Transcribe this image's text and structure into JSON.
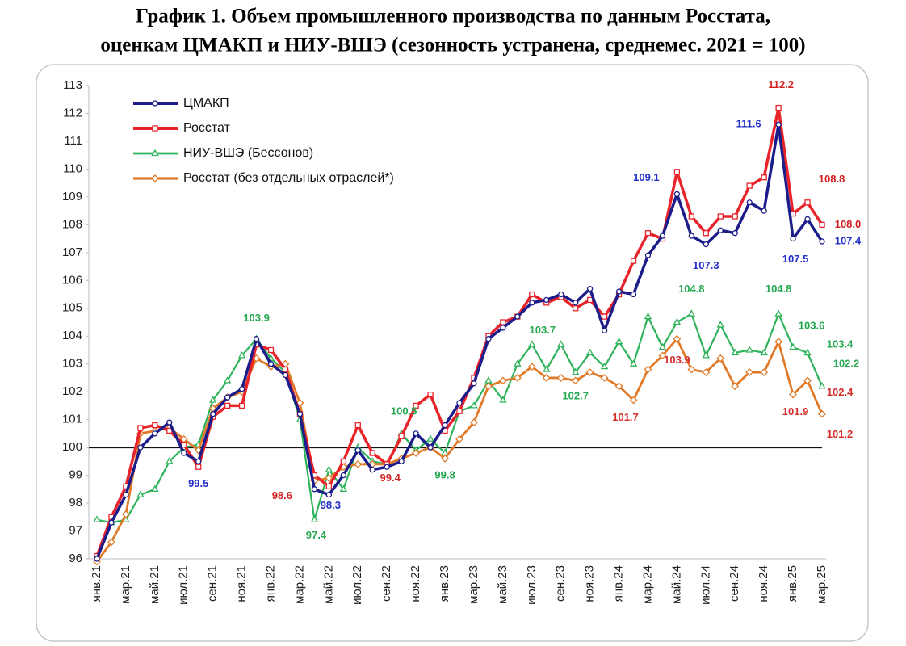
{
  "chart_data": {
    "type": "line",
    "title": [
      "График 1. Объем промышленного производства по данным Росстата,",
      "оценкам ЦМАКП и НИУ-ВШЭ (сезонность устранена, среднемес. 2021 = 100)"
    ],
    "categories": [
      "янв.21",
      null,
      "мар.21",
      null,
      "май.21",
      null,
      "июл.21",
      null,
      "сен.21",
      null,
      "ноя.21",
      null,
      "янв.22",
      null,
      "мар.22",
      null,
      "май.22",
      null,
      "июл.22",
      null,
      "сен.22",
      null,
      "ноя.22",
      null,
      "янв.23",
      null,
      "мар.23",
      null,
      "май.23",
      null,
      "июл.23",
      null,
      "сен.23",
      null,
      "ноя.23",
      null,
      "янв.24",
      null,
      "мар.24",
      null,
      "май.24",
      null,
      "июл.24",
      null,
      "сен.24",
      null,
      "ноя.24",
      null,
      "янв.25",
      null,
      "мар.25"
    ],
    "ylim": [
      96,
      113
    ],
    "yticks": [
      96,
      97,
      98,
      99,
      100,
      101,
      102,
      103,
      104,
      105,
      106,
      107,
      108,
      109,
      110,
      111,
      112,
      113
    ],
    "reference_line": 100,
    "legend": "top-left",
    "series": [
      {
        "name": "ЦМАКП",
        "color": "#1c1c8a",
        "label_color": "#2430c8",
        "marker": "circle",
        "values": [
          96.0,
          97.3,
          98.3,
          100.0,
          100.5,
          100.9,
          99.8,
          99.5,
          101.2,
          101.8,
          102.1,
          103.9,
          103.0,
          102.6,
          101.2,
          98.5,
          98.3,
          99.0,
          99.9,
          99.2,
          99.3,
          99.5,
          100.5,
          100.0,
          100.8,
          101.6,
          102.3,
          103.9,
          104.3,
          104.7,
          105.2,
          105.3,
          105.5,
          105.2,
          105.7,
          104.2,
          105.6,
          105.5,
          106.9,
          107.6,
          109.1,
          107.6,
          107.3,
          107.8,
          107.7,
          108.8,
          108.5,
          111.6,
          107.5,
          108.2,
          107.4
        ],
        "value_labels": [
          null,
          null,
          null,
          null,
          null,
          null,
          null,
          "99.5",
          null,
          null,
          null,
          null,
          null,
          null,
          null,
          null,
          "98.3",
          null,
          null,
          null,
          null,
          null,
          null,
          null,
          null,
          null,
          null,
          null,
          null,
          null,
          null,
          null,
          null,
          null,
          null,
          null,
          null,
          null,
          null,
          null,
          "109.1",
          null,
          "107.3",
          null,
          null,
          null,
          null,
          "111.6",
          "107.5",
          null,
          "107.4"
        ]
      },
      {
        "name": "Росстат",
        "color": "#e8232a",
        "label_color": "#d42020",
        "marker": "square",
        "values": [
          96.1,
          97.5,
          98.6,
          100.7,
          100.8,
          100.6,
          100.1,
          99.3,
          101.1,
          101.5,
          101.5,
          103.7,
          103.5,
          102.8,
          101.2,
          99.0,
          98.6,
          99.5,
          100.8,
          99.8,
          99.4,
          100.4,
          101.5,
          101.9,
          100.6,
          101.3,
          102.5,
          104.0,
          104.5,
          104.7,
          105.5,
          105.2,
          105.4,
          105.0,
          105.3,
          104.7,
          105.5,
          106.7,
          107.7,
          107.5,
          109.9,
          108.3,
          107.7,
          108.3,
          108.3,
          109.4,
          109.7,
          112.2,
          108.4,
          108.8,
          108.0
        ],
        "value_labels": [
          null,
          null,
          null,
          null,
          null,
          null,
          null,
          null,
          null,
          null,
          null,
          null,
          null,
          null,
          null,
          null,
          "98.6",
          null,
          null,
          null,
          "99.4",
          null,
          null,
          null,
          null,
          null,
          null,
          null,
          null,
          null,
          null,
          null,
          null,
          null,
          null,
          null,
          null,
          null,
          null,
          null,
          null,
          null,
          null,
          null,
          null,
          null,
          null,
          "112.2",
          null,
          "108.8",
          "108.0"
        ]
      },
      {
        "name": "НИУ-ВШЭ (Бессонов)",
        "color": "#2fb35a",
        "label_color": "#26a850",
        "marker": "triangle",
        "values": [
          97.4,
          97.3,
          97.4,
          98.3,
          98.5,
          99.5,
          100.0,
          100.1,
          101.7,
          102.4,
          103.3,
          103.9,
          103.2,
          102.7,
          101.0,
          97.4,
          99.2,
          98.5,
          100.0,
          99.5,
          99.4,
          100.5,
          99.9,
          100.3,
          99.8,
          101.3,
          101.5,
          102.4,
          101.7,
          103.0,
          103.7,
          102.8,
          103.7,
          102.7,
          103.4,
          102.9,
          103.8,
          103.0,
          104.7,
          103.6,
          104.5,
          104.8,
          103.3,
          104.4,
          103.4,
          103.5,
          103.4,
          104.8,
          103.6,
          103.4,
          102.2
        ],
        "value_labels": [
          null,
          null,
          null,
          null,
          null,
          null,
          null,
          null,
          null,
          null,
          null,
          "103.9",
          null,
          null,
          null,
          "97.4",
          null,
          null,
          null,
          null,
          null,
          "100.5",
          null,
          null,
          "99.8",
          null,
          null,
          null,
          null,
          null,
          "103.7",
          null,
          null,
          "102.7",
          null,
          null,
          null,
          null,
          null,
          null,
          null,
          "104.8",
          null,
          null,
          null,
          null,
          null,
          "104.8",
          "103.6",
          "103.4",
          "102.2"
        ]
      },
      {
        "name": "Росстат (без отдельных отраслей*)",
        "color": "#e07a28",
        "label_color": "#d42d2a",
        "marker": "diamond",
        "values": [
          95.9,
          96.6,
          97.6,
          100.5,
          100.6,
          100.7,
          100.3,
          99.9,
          101.4,
          101.8,
          102.0,
          103.2,
          102.9,
          103.0,
          101.6,
          98.8,
          98.9,
          99.3,
          99.4,
          99.4,
          99.4,
          99.6,
          99.8,
          100.0,
          99.6,
          100.3,
          100.9,
          102.2,
          102.4,
          102.5,
          102.9,
          102.5,
          102.5,
          102.4,
          102.7,
          102.5,
          102.2,
          101.7,
          102.8,
          103.3,
          103.9,
          102.8,
          102.7,
          103.2,
          102.2,
          102.7,
          102.7,
          103.8,
          101.9,
          102.4,
          101.2
        ],
        "value_labels": [
          null,
          null,
          null,
          null,
          null,
          null,
          null,
          null,
          null,
          null,
          null,
          null,
          null,
          null,
          null,
          null,
          null,
          null,
          null,
          null,
          null,
          null,
          null,
          null,
          null,
          null,
          null,
          null,
          null,
          null,
          null,
          null,
          null,
          null,
          null,
          null,
          null,
          "101.7",
          null,
          null,
          "103.9",
          null,
          null,
          null,
          null,
          null,
          null,
          null,
          "101.9",
          "102.4",
          "101.2"
        ]
      }
    ]
  }
}
